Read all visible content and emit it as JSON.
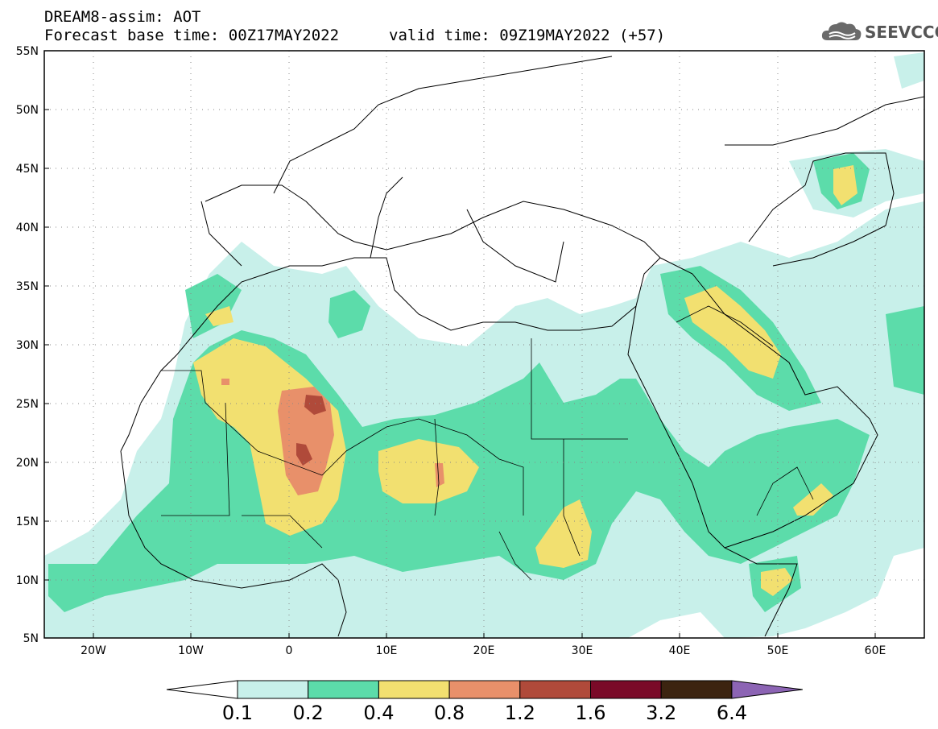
{
  "title": {
    "line1": "DREAM8-assim: AOT",
    "line2_base": "Forecast base time: 00Z17MAY2022",
    "line2_valid": "valid time: 09Z19MAY2022 (+57)"
  },
  "logo": {
    "text": "SEEVCCC",
    "icon": "cloud-icon"
  },
  "map": {
    "lon_range": [
      -25,
      65
    ],
    "lat_range": [
      5,
      55
    ],
    "lat_labels": [
      "5N",
      "10N",
      "15N",
      "20N",
      "25N",
      "30N",
      "35N",
      "40N",
      "45N",
      "50N",
      "55N"
    ],
    "lon_labels": [
      "20W",
      "10W",
      "0",
      "10E",
      "20E",
      "30E",
      "40E",
      "50E",
      "60E"
    ]
  },
  "colorbar": {
    "labels": [
      "0.1",
      "0.2",
      "0.4",
      "0.8",
      "1.2",
      "1.6",
      "3.2",
      "6.4"
    ],
    "colors": [
      "#c8f0ea",
      "#5cdcaa",
      "#f2e070",
      "#e8906a",
      "#b04a3a",
      "#7a0a28",
      "#3c2410",
      "#8c64b4"
    ],
    "under_color": "#ffffff"
  }
}
